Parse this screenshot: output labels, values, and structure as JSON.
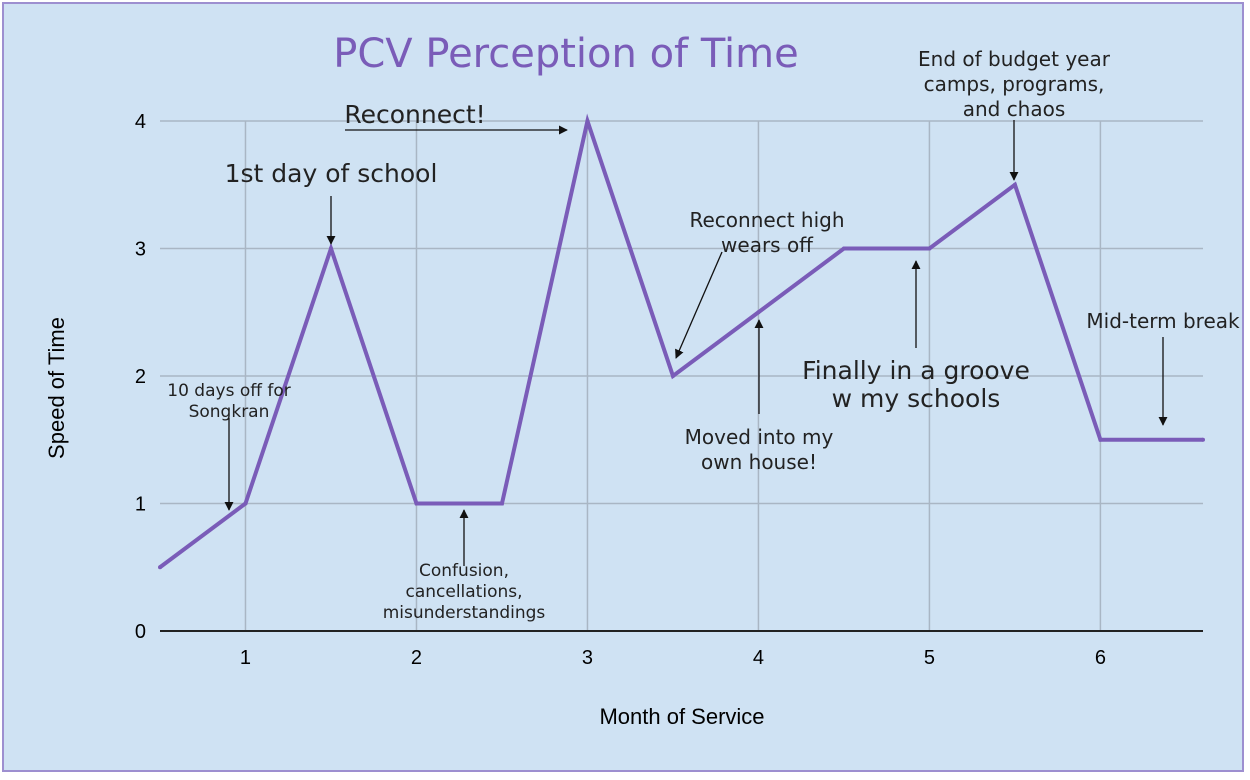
{
  "chart_data": {
    "type": "line",
    "title": "PCV Perception of Time",
    "xlabel": "Month of Service",
    "ylabel": "Speed of Time",
    "xlim": [
      0.5,
      6.6
    ],
    "ylim": [
      0,
      4
    ],
    "x_ticks": [
      1,
      2,
      3,
      4,
      5,
      6
    ],
    "y_ticks": [
      0,
      1,
      2,
      3,
      4
    ],
    "grid": true,
    "legend": "none",
    "series": [
      {
        "name": "Speed of Time",
        "color": "#7a5cb8",
        "x": [
          0.5,
          1,
          1.5,
          2,
          2.5,
          3,
          3.5,
          4,
          4.5,
          5,
          5.5,
          6,
          6.6
        ],
        "y": [
          0.5,
          1,
          3,
          1,
          1,
          4,
          2,
          2.5,
          3,
          3,
          3.5,
          1.5,
          1.5
        ]
      }
    ],
    "annotations": [
      {
        "lines": [
          "10 days off for",
          "Songkran"
        ],
        "size": "small"
      },
      {
        "lines": [
          "1st day of school"
        ],
        "size": "large"
      },
      {
        "lines": [
          "Confusion,",
          "cancellations,",
          "misunderstandings"
        ],
        "size": "small"
      },
      {
        "lines": [
          "Reconnect!"
        ],
        "size": "large"
      },
      {
        "lines": [
          "Reconnect high",
          "wears off"
        ],
        "size": "medium"
      },
      {
        "lines": [
          "Moved into my",
          "own house!"
        ],
        "size": "medium"
      },
      {
        "lines": [
          "Finally in a groove",
          "w my schools"
        ],
        "size": "large"
      },
      {
        "lines": [
          "End of budget year",
          "camps, programs,",
          "and chaos"
        ],
        "size": "medium"
      },
      {
        "lines": [
          "Mid-term break"
        ],
        "size": "medium"
      }
    ]
  },
  "colors": {
    "background": "#cfe2f3",
    "frame": "#9d8fd0",
    "title": "#7a5cb8",
    "grid": "#a9b6c4",
    "line": "#7a5cb8"
  }
}
